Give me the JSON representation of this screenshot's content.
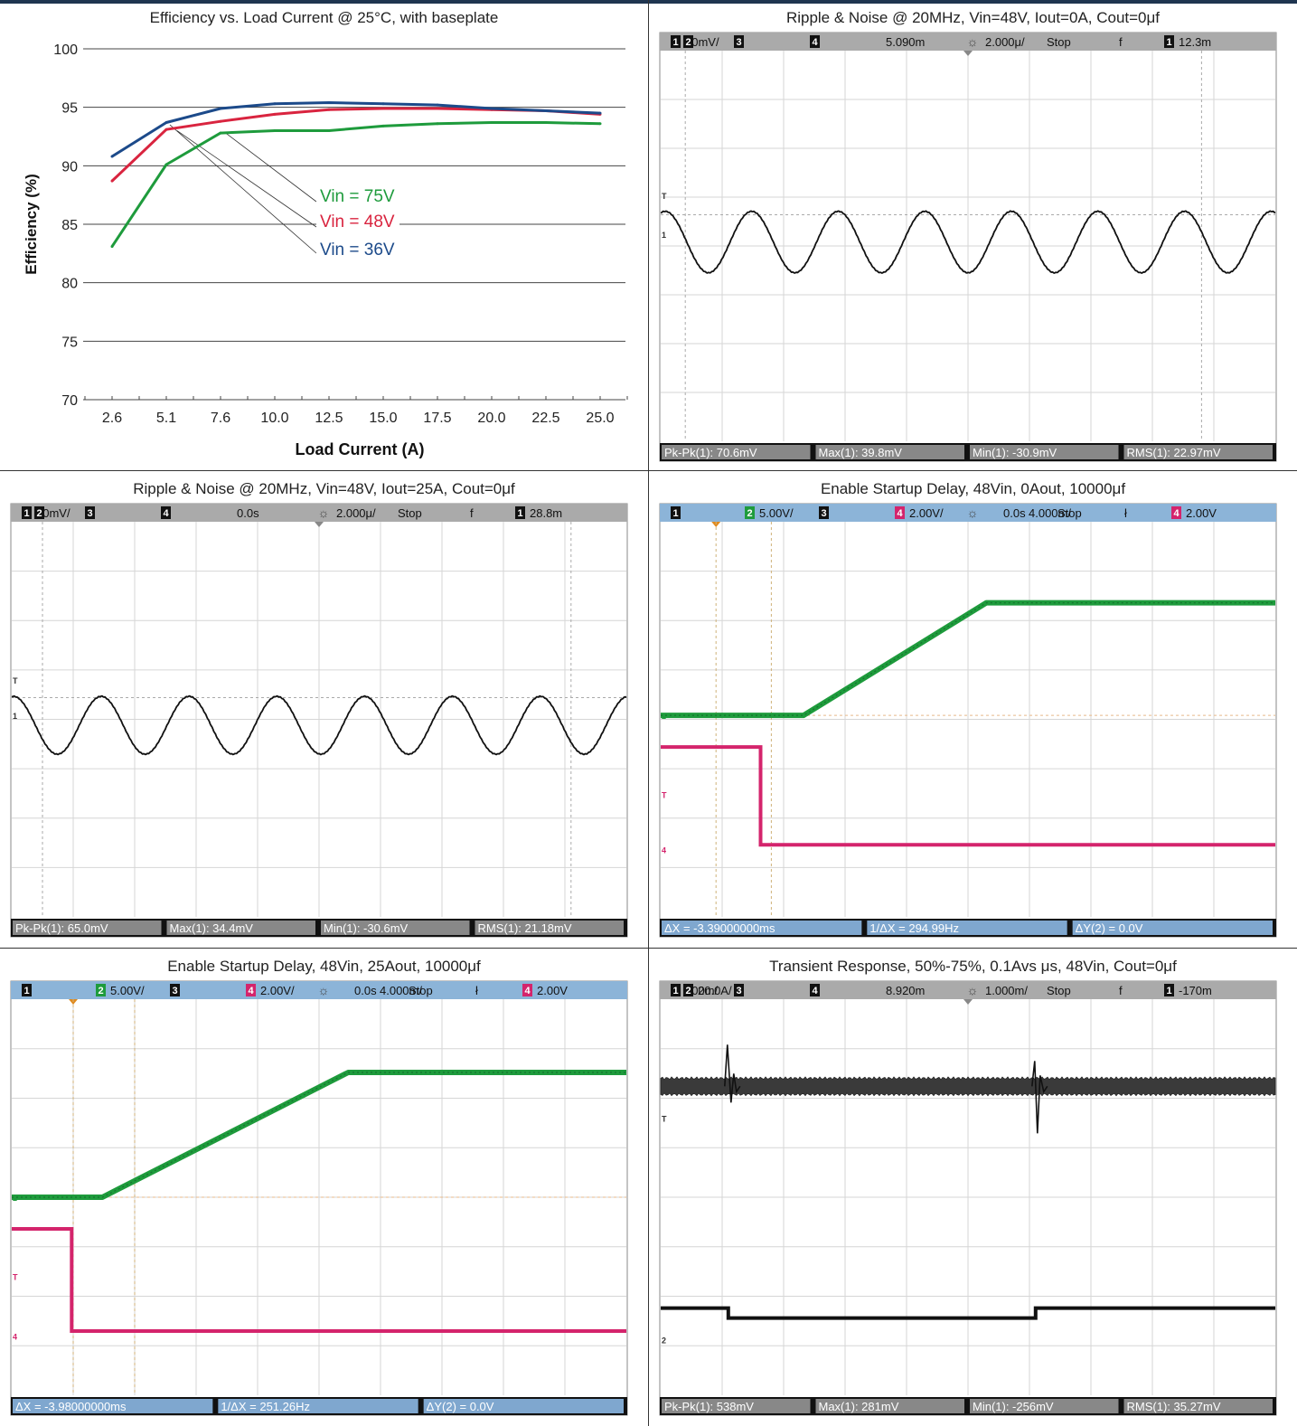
{
  "panels": [
    {
      "id": "efficiency",
      "title": "Efficiency vs. Load Current @ 25°C, with baseplate"
    },
    {
      "id": "ripple0",
      "title": "Ripple & Noise @ 20MHz, Vin=48V, Iout=0A, Cout=0μf",
      "header": [
        {
          "type": "ch",
          "ch": "1",
          "text": "50mV/"
        },
        {
          "type": "ch",
          "ch": "2",
          "text": ""
        },
        {
          "type": "ch",
          "ch": "3",
          "text": ""
        },
        {
          "type": "ch",
          "ch": "4",
          "text": ""
        },
        {
          "type": "txt",
          "text": "5.090m"
        },
        {
          "type": "txt",
          "text": "2.000μ/"
        },
        {
          "type": "txt",
          "text": "Stop"
        },
        {
          "type": "txt",
          "text": "f"
        },
        {
          "type": "ch",
          "ch": "1",
          "text": "12.3m"
        }
      ],
      "measurements": [
        "Pk-Pk(1): 70.6mV",
        "Max(1): 39.8mV",
        "Min(1): -30.9mV",
        "RMS(1): 22.97mV"
      ]
    },
    {
      "id": "ripple25",
      "title": "Ripple & Noise @ 20MHz, Vin=48V, Iout=25A, Cout=0μf",
      "header": [
        {
          "type": "ch",
          "ch": "1",
          "text": "50mV/"
        },
        {
          "type": "ch",
          "ch": "2",
          "text": ""
        },
        {
          "type": "ch",
          "ch": "3",
          "text": ""
        },
        {
          "type": "ch",
          "ch": "4",
          "text": ""
        },
        {
          "type": "txt",
          "text": "0.0s"
        },
        {
          "type": "txt",
          "text": "2.000μ/"
        },
        {
          "type": "txt",
          "text": "Stop"
        },
        {
          "type": "txt",
          "text": "f"
        },
        {
          "type": "ch",
          "ch": "1",
          "text": "28.8m"
        }
      ],
      "measurements": [
        "Pk-Pk(1): 65.0mV",
        "Max(1): 34.4mV",
        "Min(1): -30.6mV",
        "RMS(1): 21.18mV"
      ]
    },
    {
      "id": "startup0",
      "title": "Enable Startup Delay, 48Vin, 0Aout, 10000μf",
      "header": [
        {
          "type": "ch",
          "ch": "1",
          "text": ""
        },
        {
          "type": "ch",
          "ch": "2",
          "text": "5.00V/",
          "color": "#1e9b3c"
        },
        {
          "type": "ch",
          "ch": "3",
          "text": ""
        },
        {
          "type": "ch",
          "ch": "4",
          "text": "2.00V/",
          "color": "#d4246c"
        },
        {
          "type": "txt",
          "text": "0.0s"
        },
        {
          "type": "txt",
          "text": "4.000m/"
        },
        {
          "type": "txt",
          "text": "Stop"
        },
        {
          "type": "txt",
          "text": "ł"
        },
        {
          "type": "ch",
          "ch": "4",
          "text": "2.00V",
          "color": "#d4246c"
        }
      ],
      "measurements": [
        "ΔX = -3.39000000ms",
        "1/ΔX = 294.99Hz",
        "ΔY(2) = 0.0V"
      ]
    },
    {
      "id": "startup25",
      "title": "Enable Startup Delay, 48Vin, 25Aout, 10000μf",
      "header": [
        {
          "type": "ch",
          "ch": "1",
          "text": ""
        },
        {
          "type": "ch",
          "ch": "2",
          "text": "5.00V/",
          "color": "#1e9b3c"
        },
        {
          "type": "ch",
          "ch": "3",
          "text": ""
        },
        {
          "type": "ch",
          "ch": "4",
          "text": "2.00V/",
          "color": "#d4246c"
        },
        {
          "type": "txt",
          "text": "0.0s"
        },
        {
          "type": "txt",
          "text": "4.000m/"
        },
        {
          "type": "txt",
          "text": "Stop"
        },
        {
          "type": "txt",
          "text": "ł"
        },
        {
          "type": "ch",
          "ch": "4",
          "text": "2.00V",
          "color": "#d4246c"
        }
      ],
      "measurements": [
        "ΔX = -3.98000000ms",
        "1/ΔX = 251.26Hz",
        "ΔY(2) = 0.0V"
      ]
    },
    {
      "id": "transient",
      "title": "Transient Response, 50%-75%, 0.1Avs μs, 48Vin, Cout=0μf",
      "header": [
        {
          "type": "ch",
          "ch": "1",
          "text": "200m/"
        },
        {
          "type": "ch",
          "ch": "2",
          "text": "20.0A/"
        },
        {
          "type": "ch",
          "ch": "3",
          "text": ""
        },
        {
          "type": "ch",
          "ch": "4",
          "text": ""
        },
        {
          "type": "txt",
          "text": "8.920m"
        },
        {
          "type": "txt",
          "text": "1.000m/"
        },
        {
          "type": "txt",
          "text": "Stop"
        },
        {
          "type": "txt",
          "text": "f"
        },
        {
          "type": "ch",
          "ch": "1",
          "text": "-170m"
        }
      ],
      "measurements": [
        "Pk-Pk(1): 538mV",
        "Max(1): 281mV",
        "Min(1): -256mV",
        "RMS(1): 35.27mV"
      ]
    }
  ],
  "chart_data": [
    {
      "type": "line",
      "title": "Efficiency vs. Load Current @ 25°C, with baseplate",
      "xlabel": "Load Current (A)",
      "ylabel": "Efficiency (%)",
      "x": [
        2.6,
        5.1,
        7.6,
        10.0,
        12.5,
        15.0,
        17.5,
        20.0,
        22.5,
        25.0
      ],
      "xticks": [
        "2.6",
        "5.1",
        "7.6",
        "10.0",
        "12.5",
        "15.0",
        "17.5",
        "20.0",
        "22.5",
        "25.0"
      ],
      "yticks": [
        "70",
        "75",
        "80",
        "85",
        "90",
        "95",
        "100"
      ],
      "ylim": [
        70,
        100
      ],
      "grid": "horizontal",
      "series": [
        {
          "name": "Vin = 75V",
          "color": "#1e9b3c",
          "values": [
            83.1,
            90.1,
            92.8,
            93.0,
            93.0,
            93.4,
            93.6,
            93.7,
            93.7,
            93.6
          ]
        },
        {
          "name": "Vin = 48V",
          "color": "#d9243f",
          "values": [
            88.7,
            93.1,
            93.8,
            94.4,
            94.8,
            94.9,
            94.9,
            94.8,
            94.7,
            94.4
          ]
        },
        {
          "name": "Vin = 36V",
          "color": "#1c4a8a",
          "values": [
            90.8,
            93.7,
            94.9,
            95.3,
            95.4,
            95.3,
            95.2,
            94.9,
            94.7,
            94.5
          ]
        }
      ]
    },
    {
      "type": "line",
      "title": "Ripple & Noise @ 20MHz, Vin=48V, Iout=0A, Cout=0μf",
      "x": [
        0,
        20
      ],
      "series": [
        {
          "channel": "1",
          "color": "#111111",
          "waveform": "sine",
          "cycles": 7.1,
          "max_mV": 39.8,
          "min_mV": -30.9,
          "v_per_div_mV": 50
        }
      ]
    },
    {
      "type": "line",
      "title": "Ripple & Noise @ 20MHz, Vin=48V, Iout=25A, Cout=0μf",
      "x": [
        0,
        20
      ],
      "series": [
        {
          "channel": "1",
          "color": "#111111",
          "waveform": "sine",
          "cycles": 7.0,
          "max_mV": 34.4,
          "min_mV": -30.6,
          "v_per_div_mV": 50
        }
      ]
    },
    {
      "type": "line",
      "title": "Enable Startup Delay, 48Vin, 0Aout, 10000μf",
      "x": [
        0,
        40
      ],
      "series": [
        {
          "channel": "2",
          "color": "#1e9b3c",
          "points": [
            [
              0,
              0
            ],
            [
              9.3,
              0
            ],
            [
              21.2,
              12.6
            ],
            [
              40,
              12.6
            ]
          ]
        },
        {
          "channel": "4",
          "color": "#d4246c",
          "points": [
            [
              0,
              5.2
            ],
            [
              6.5,
              5.2
            ],
            [
              6.5,
              0.05
            ],
            [
              40,
              0.05
            ]
          ]
        }
      ]
    },
    {
      "type": "line",
      "title": "Enable Startup Delay, 48Vin, 25Aout, 10000μf",
      "x": [
        0,
        40
      ],
      "series": [
        {
          "channel": "2",
          "color": "#1e9b3c",
          "points": [
            [
              0,
              0
            ],
            [
              5.9,
              0
            ],
            [
              21.9,
              12.7
            ],
            [
              40,
              12.7
            ]
          ]
        },
        {
          "channel": "4",
          "color": "#d4246c",
          "points": [
            [
              0,
              5.0
            ],
            [
              3.9,
              5.0
            ],
            [
              3.9,
              0.04
            ],
            [
              40,
              0.04
            ]
          ]
        }
      ]
    },
    {
      "type": "line",
      "title": "Transient Response, 50%-75%, 0.1Avs μs, 48Vin, Cout=0μf",
      "x": [
        0,
        10
      ],
      "series": [
        {
          "channel": "1",
          "color": "#222222",
          "band": "noise",
          "events": [
            {
              "t": 1.1,
              "peak_mV": 281
            },
            {
              "t": 6.1,
              "peak_mV": -256
            }
          ]
        },
        {
          "channel": "2",
          "color": "#111111",
          "steps": [
            [
              0,
              37.5
            ],
            [
              1.1,
              37.5
            ],
            [
              1.1,
              35.3
            ],
            [
              6.1,
              35.3
            ],
            [
              6.1,
              37.5
            ],
            [
              10,
              37.5
            ]
          ]
        }
      ]
    }
  ]
}
